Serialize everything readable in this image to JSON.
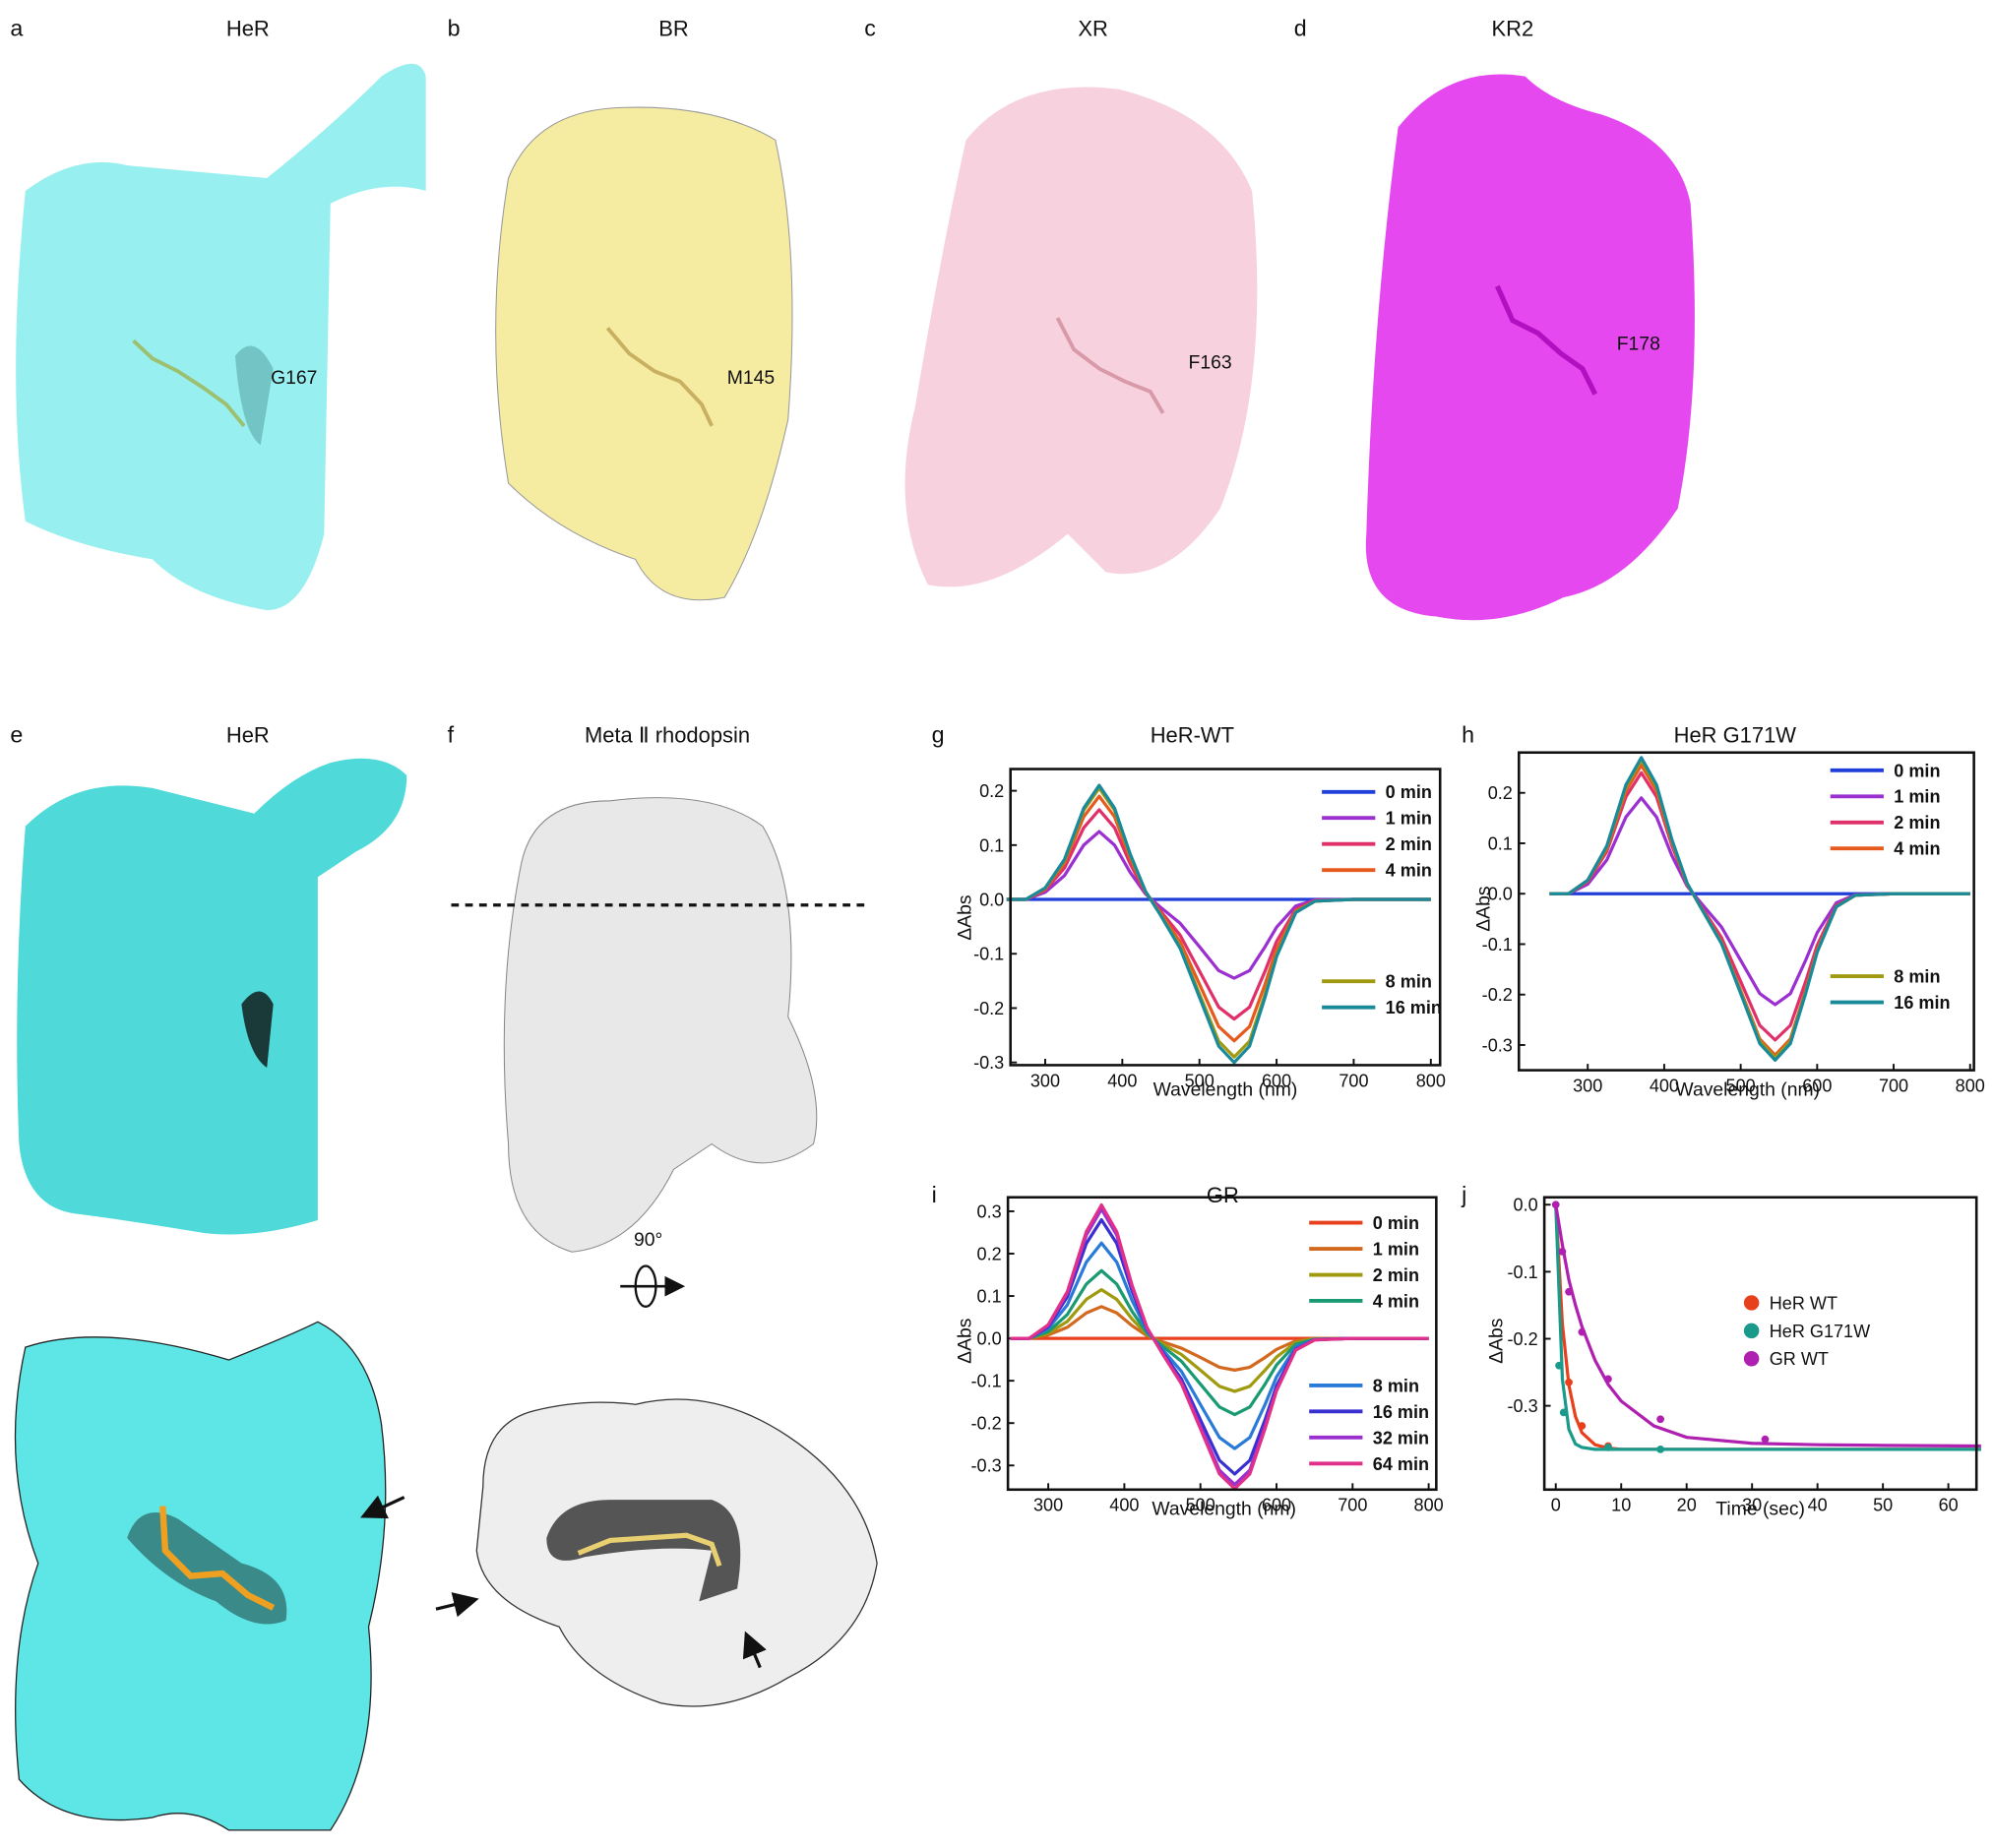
{
  "panels": [
    {
      "letter": "a",
      "title": "HeR",
      "residue": "G167"
    },
    {
      "letter": "b",
      "title": "BR",
      "residue": "M145"
    },
    {
      "letter": "c",
      "title": "XR",
      "residue": "F163"
    },
    {
      "letter": "d",
      "title": "KR2",
      "residue": "F178"
    },
    {
      "letter": "e",
      "title": "HeR"
    },
    {
      "letter": "f",
      "title": "Meta Ⅱ rhodopsin"
    }
  ],
  "rotation_label": "90°",
  "chart_data": [
    {
      "type": "line",
      "panel_label": "g",
      "title": "HeR-WT",
      "xlabel": "Wavelength (nm)",
      "ylabel": "ΔAbs",
      "x": [
        250,
        275,
        300,
        325,
        350,
        370,
        390,
        410,
        430,
        450,
        475,
        500,
        525,
        545,
        565,
        585,
        600,
        625,
        650,
        700,
        750,
        800
      ],
      "xlim": [
        255,
        812
      ],
      "xticks": [
        300,
        400,
        500,
        600,
        700,
        800
      ],
      "ylim": [
        -0.305,
        0.24
      ],
      "yticks": [
        -0.3,
        -0.2,
        -0.1,
        {
          "value": 0,
          "label": "0.0"
        },
        0.1,
        0.2
      ],
      "series": [
        {
          "name": "0 min",
          "color": "#1f3fd8",
          "values": [
            0,
            0,
            0,
            0,
            0,
            0,
            0,
            0,
            0,
            0,
            0,
            0,
            0,
            0,
            0,
            0,
            0,
            0,
            0,
            0,
            0,
            0
          ]
        },
        {
          "name": "1 min",
          "color": "#9b30d0",
          "values": [
            0,
            0,
            0.013,
            0.044,
            0.1,
            0.125,
            0.1,
            0.05,
            0.01,
            -0.015,
            -0.044,
            -0.087,
            -0.131,
            -0.145,
            -0.131,
            -0.087,
            -0.051,
            -0.012,
            -0.001,
            0,
            0,
            0
          ]
        },
        {
          "name": "2 min",
          "color": "#e0306a",
          "values": [
            0,
            0,
            0.017,
            0.058,
            0.132,
            0.165,
            0.132,
            0.066,
            0.012,
            -0.022,
            -0.066,
            -0.132,
            -0.198,
            -0.22,
            -0.198,
            -0.132,
            -0.077,
            -0.018,
            -0.002,
            0,
            0,
            0
          ]
        },
        {
          "name": "4 min",
          "color": "#e65a1e",
          "values": [
            0,
            0,
            0.019,
            0.067,
            0.152,
            0.19,
            0.152,
            0.076,
            0.014,
            -0.026,
            -0.078,
            -0.156,
            -0.234,
            -0.26,
            -0.234,
            -0.156,
            -0.091,
            -0.021,
            -0.003,
            0,
            0,
            0
          ]
        },
        {
          "name": "8 min",
          "color": "#a09a10",
          "values": [
            0,
            0,
            0.021,
            0.072,
            0.164,
            0.205,
            0.164,
            0.082,
            0.015,
            -0.029,
            -0.087,
            -0.174,
            -0.261,
            -0.29,
            -0.261,
            -0.174,
            -0.102,
            -0.023,
            -0.003,
            0,
            0,
            0
          ]
        },
        {
          "name": "16 min",
          "color": "#1a8a9a",
          "values": [
            0,
            0,
            0.021,
            0.074,
            0.168,
            0.21,
            0.168,
            0.084,
            0.015,
            -0.03,
            -0.09,
            -0.18,
            -0.27,
            -0.3,
            -0.27,
            -0.18,
            -0.105,
            -0.024,
            -0.003,
            0,
            0,
            0
          ]
        }
      ]
    },
    {
      "type": "line",
      "panel_label": "h",
      "title": "HeR G171W",
      "xlabel": "Wavelength (nm)",
      "ylabel": "ΔAbs",
      "x": [
        250,
        275,
        300,
        325,
        350,
        370,
        390,
        410,
        430,
        450,
        475,
        500,
        525,
        545,
        565,
        585,
        600,
        625,
        650,
        700,
        750,
        800
      ],
      "xlim": [
        210,
        805
      ],
      "xticks": [
        300,
        400,
        500,
        600,
        700,
        800
      ],
      "ylim": [
        -0.35,
        0.28
      ],
      "yticks": [
        -0.3,
        -0.2,
        -0.1,
        {
          "value": 0,
          "label": "0.0"
        },
        0.1,
        0.2
      ],
      "series": [
        {
          "name": "0 min",
          "color": "#1f3fd8",
          "values": [
            0,
            0,
            0,
            0,
            0,
            0,
            0,
            0,
            0,
            0,
            0,
            0,
            0,
            0,
            0,
            0,
            0,
            0,
            0,
            0,
            0,
            0
          ]
        },
        {
          "name": "1 min",
          "color": "#9b30d0",
          "values": [
            0,
            0,
            0.019,
            0.067,
            0.152,
            0.19,
            0.152,
            0.076,
            0.015,
            -0.022,
            -0.066,
            -0.132,
            -0.198,
            -0.22,
            -0.198,
            -0.132,
            -0.077,
            -0.018,
            -0.002,
            0,
            0,
            0
          ]
        },
        {
          "name": "2 min",
          "color": "#e0306a",
          "values": [
            0,
            0,
            0.024,
            0.084,
            0.192,
            0.24,
            0.192,
            0.096,
            0.018,
            -0.029,
            -0.087,
            -0.174,
            -0.261,
            -0.29,
            -0.261,
            -0.174,
            -0.102,
            -0.023,
            -0.003,
            0,
            0,
            0
          ]
        },
        {
          "name": "4 min",
          "color": "#e65a1e",
          "values": [
            0,
            0,
            0.026,
            0.089,
            0.204,
            0.255,
            0.204,
            0.102,
            0.019,
            -0.032,
            -0.096,
            -0.192,
            -0.288,
            -0.32,
            -0.288,
            -0.192,
            -0.112,
            -0.026,
            -0.003,
            0,
            0,
            0
          ]
        },
        {
          "name": "8 min",
          "color": "#a09a10",
          "values": [
            0,
            0,
            0.027,
            0.093,
            0.212,
            0.265,
            0.212,
            0.106,
            0.02,
            -0.033,
            -0.098,
            -0.195,
            -0.293,
            -0.325,
            -0.293,
            -0.195,
            -0.114,
            -0.026,
            -0.003,
            0,
            0,
            0
          ]
        },
        {
          "name": "16 min",
          "color": "#1a8a9a",
          "values": [
            0,
            0,
            0.027,
            0.095,
            0.216,
            0.27,
            0.216,
            0.108,
            0.021,
            -0.033,
            -0.099,
            -0.198,
            -0.297,
            -0.33,
            -0.297,
            -0.198,
            -0.116,
            -0.026,
            -0.003,
            0,
            0,
            0
          ]
        }
      ]
    },
    {
      "type": "line",
      "panel_label": "i",
      "title": "GR",
      "xlabel": "Wavelength (nm)",
      "ylabel": "ΔAbs",
      "x": [
        250,
        275,
        300,
        325,
        350,
        370,
        390,
        410,
        430,
        450,
        475,
        500,
        525,
        545,
        565,
        585,
        600,
        625,
        650,
        700,
        750,
        800
      ],
      "xlim": [
        247,
        810
      ],
      "xticks": [
        300,
        400,
        500,
        600,
        700,
        800
      ],
      "ylim": [
        -0.357,
        0.333
      ],
      "yticks": [
        -0.3,
        -0.2,
        -0.1,
        {
          "value": 0,
          "label": "0.0"
        },
        0.1,
        0.2,
        0.3
      ],
      "series": [
        {
          "name": "0 min",
          "color": "#e8401c",
          "values": [
            0,
            0,
            0,
            0,
            0,
            0,
            0,
            0,
            0,
            0,
            0,
            0,
            0,
            0,
            0,
            0,
            0,
            0,
            0,
            0,
            0,
            0
          ]
        },
        {
          "name": "1 min",
          "color": "#d2691e",
          "values": [
            0,
            0,
            0.008,
            0.026,
            0.06,
            0.075,
            0.06,
            0.03,
            0.006,
            -0.008,
            -0.023,
            -0.045,
            -0.068,
            -0.075,
            -0.068,
            -0.045,
            -0.026,
            -0.006,
            -0.001,
            0,
            0,
            0
          ]
        },
        {
          "name": "2 min",
          "color": "#a09a10",
          "values": [
            0,
            0,
            0.012,
            0.04,
            0.092,
            0.115,
            0.092,
            0.046,
            0.009,
            -0.013,
            -0.038,
            -0.075,
            -0.113,
            -0.125,
            -0.113,
            -0.075,
            -0.044,
            -0.01,
            -0.001,
            0,
            0,
            0
          ]
        },
        {
          "name": "4 min",
          "color": "#1a9a72",
          "values": [
            0,
            0,
            0.016,
            0.056,
            0.128,
            0.16,
            0.128,
            0.064,
            0.012,
            -0.018,
            -0.054,
            -0.108,
            -0.162,
            -0.18,
            -0.162,
            -0.108,
            -0.063,
            -0.014,
            -0.002,
            0,
            0,
            0
          ]
        },
        {
          "name": "8 min",
          "color": "#2a7ad8",
          "values": [
            0,
            0,
            0.023,
            0.079,
            0.18,
            0.225,
            0.18,
            0.09,
            0.017,
            -0.026,
            -0.078,
            -0.156,
            -0.234,
            -0.26,
            -0.234,
            -0.156,
            -0.091,
            -0.021,
            -0.003,
            0,
            0,
            0
          ]
        },
        {
          "name": "16 min",
          "color": "#3a30d0",
          "values": [
            0,
            0,
            0.028,
            0.098,
            0.224,
            0.28,
            0.224,
            0.112,
            0.022,
            -0.032,
            -0.096,
            -0.192,
            -0.288,
            -0.32,
            -0.288,
            -0.192,
            -0.112,
            -0.026,
            -0.003,
            0,
            0,
            0
          ]
        },
        {
          "name": "32 min",
          "color": "#9b30d0",
          "values": [
            0,
            0,
            0.031,
            0.107,
            0.244,
            0.305,
            0.244,
            0.122,
            0.024,
            -0.035,
            -0.104,
            -0.207,
            -0.311,
            -0.345,
            -0.311,
            -0.207,
            -0.121,
            -0.028,
            -0.003,
            0,
            0,
            0
          ]
        },
        {
          "name": "64 min",
          "color": "#e0308a",
          "values": [
            0,
            0,
            0.032,
            0.11,
            0.252,
            0.315,
            0.252,
            0.126,
            0.025,
            -0.036,
            -0.107,
            -0.213,
            -0.32,
            -0.355,
            -0.32,
            -0.213,
            -0.124,
            -0.028,
            -0.004,
            0,
            0,
            0
          ]
        }
      ]
    },
    {
      "type": "scatter",
      "panel_label": "j",
      "xlabel": "Time (sec)",
      "ylabel": "ΔAbs",
      "xlim": [
        -1.75,
        64.3
      ],
      "xticks": [
        0,
        10,
        20,
        30,
        40,
        50,
        60
      ],
      "ylim": [
        -0.425,
        0.011
      ],
      "yticks": [
        -0.3,
        -0.2,
        -0.1,
        {
          "value": 0,
          "label": "0.0"
        }
      ],
      "series": [
        {
          "name": "HeR WT",
          "color": "#e8401c",
          "x": [
            2,
            4,
            8
          ],
          "values": [
            -0.265,
            -0.33,
            -0.36
          ],
          "fit_x": [
            0,
            1,
            2,
            3,
            4,
            6,
            8,
            10,
            15,
            20,
            30,
            40,
            50,
            65
          ],
          "fit_values": [
            0,
            -0.178,
            -0.269,
            -0.316,
            -0.34,
            -0.358,
            -0.363,
            -0.365,
            -0.365,
            -0.365,
            -0.365,
            -0.365,
            -0.365,
            -0.365
          ]
        },
        {
          "name": "HeR G171W",
          "color": "#1a9a8a",
          "x": [
            0.5,
            1.2,
            8,
            16
          ],
          "values": [
            -0.24,
            -0.31,
            -0.362,
            -0.365
          ],
          "fit_x": [
            0,
            1,
            2,
            3,
            4,
            6,
            8,
            10,
            15,
            20,
            30,
            40,
            50,
            65
          ],
          "fit_values": [
            0,
            -0.26,
            -0.335,
            -0.357,
            -0.362,
            -0.365,
            -0.365,
            -0.365,
            -0.365,
            -0.365,
            -0.365,
            -0.365,
            -0.365,
            -0.365
          ]
        },
        {
          "name": "GR WT",
          "color": "#b020b0",
          "x": [
            0,
            1,
            2,
            4,
            8,
            16,
            32
          ],
          "values": [
            0,
            -0.07,
            -0.13,
            -0.19,
            -0.26,
            -0.32,
            -0.35
          ],
          "fit_x": [
            0,
            1,
            2,
            3,
            4,
            6,
            8,
            10,
            15,
            20,
            30,
            40,
            50,
            65
          ],
          "fit_values": [
            0,
            -0.06,
            -0.112,
            -0.15,
            -0.182,
            -0.232,
            -0.268,
            -0.293,
            -0.33,
            -0.347,
            -0.356,
            -0.358,
            -0.359,
            -0.36
          ]
        }
      ]
    }
  ]
}
